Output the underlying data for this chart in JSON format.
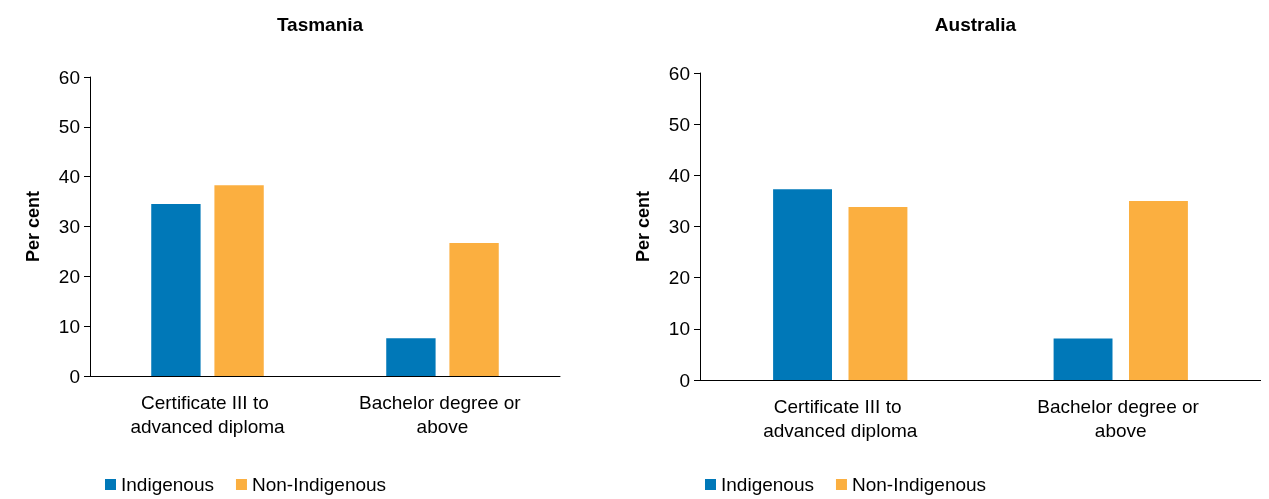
{
  "chart_data": [
    {
      "type": "bar",
      "title": "Tasmania",
      "ylabel": "Per cent",
      "categories": [
        "Certificate III to advanced diploma",
        "Bachelor degree or above"
      ],
      "series": [
        {
          "name": "Indigenous",
          "color": "#0078b8",
          "values": [
            34.5,
            7.6
          ]
        },
        {
          "name": "Non-Indigenous",
          "color": "#fbaf40",
          "values": [
            38.3,
            26.7
          ]
        }
      ],
      "ylim": [
        0,
        60
      ],
      "yticks": [
        0,
        10,
        20,
        30,
        40,
        50,
        60
      ],
      "grid": false,
      "legend": "bottom"
    },
    {
      "type": "bar",
      "title": "Australia",
      "ylabel": "Per cent",
      "categories": [
        "Certificate III to advanced diploma",
        "Bachelor degree or above"
      ],
      "series": [
        {
          "name": "Indigenous",
          "color": "#0078b8",
          "values": [
            37.3,
            8.1
          ]
        },
        {
          "name": "Non-Indigenous",
          "color": "#fbaf40",
          "values": [
            33.8,
            35.0
          ]
        }
      ],
      "ylim": [
        0,
        60
      ],
      "yticks": [
        0,
        10,
        20,
        30,
        40,
        50,
        60
      ],
      "grid": false,
      "legend": "bottom"
    }
  ]
}
